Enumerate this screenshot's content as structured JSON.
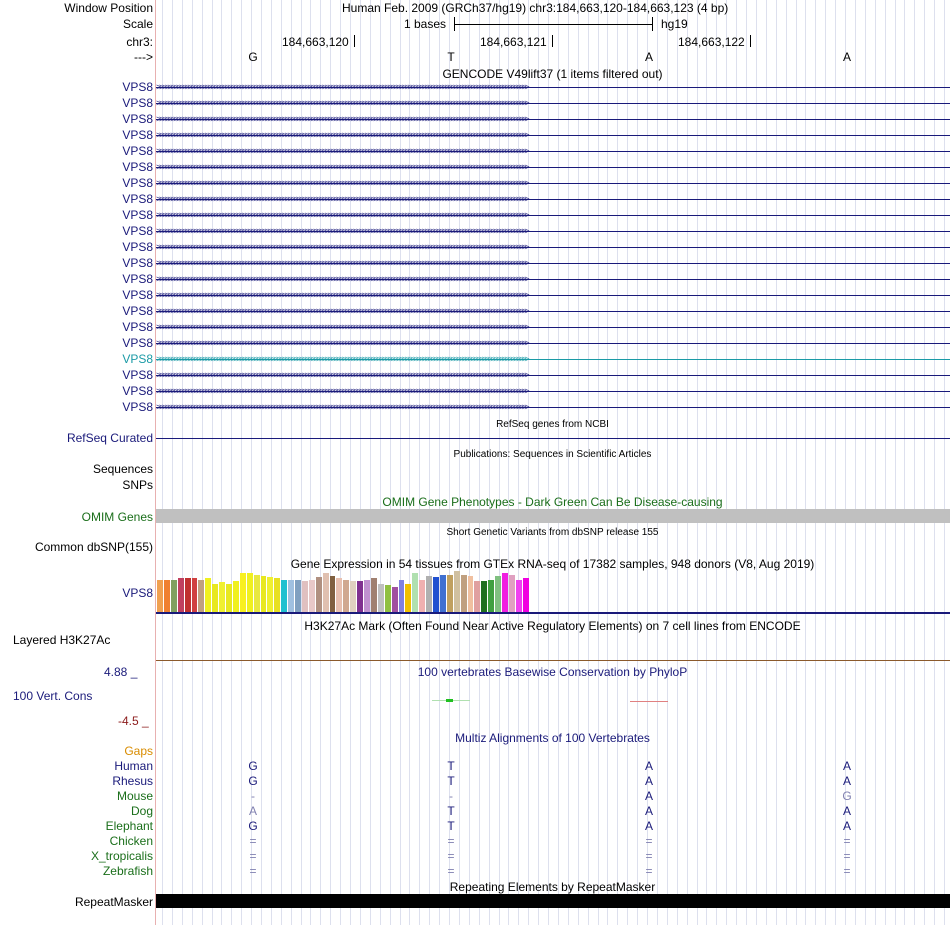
{
  "header": {
    "window_position_label": "Window Position",
    "assembly_text": "Human Feb. 2009 (GRCh37/hg19)   chr3:184,663,120-184,663,123 (4 bp)",
    "scale_label": "Scale",
    "scale_text": "1 bases",
    "scale_assembly": "hg19",
    "chrom_label": "chr3:",
    "coords": [
      "184,663,120",
      "184,663,121",
      "184,663,122"
    ],
    "strand_label": "--->",
    "bases": [
      "G",
      "T",
      "A",
      "A"
    ]
  },
  "gencode": {
    "title": "GENCODE V49lift37 (1 items filtered out)",
    "gene_name": "VPS8",
    "row_count": 21,
    "highlight_row": 17,
    "color": "#1a1a7a",
    "highlight_color": "#1a9aa6"
  },
  "refseq": {
    "title": "RefSeq genes from NCBI",
    "label": "RefSeq Curated"
  },
  "publications": {
    "title": "Publications: Sequences in Scientific Articles",
    "label": "Sequences"
  },
  "snps": {
    "label": "SNPs"
  },
  "omim": {
    "title": "OMIM Gene Phenotypes - Dark Green Can Be Disease-causing",
    "label": "OMIM Genes"
  },
  "dbsnp": {
    "title": "Short Genetic Variants from dbSNP release 155",
    "label": "Common dbSNP(155)"
  },
  "gtex": {
    "title": "Gene Expression in 54 tissues from GTEx RNA-seq of 17382 samples, 948 donors (V8, Aug 2019)",
    "label": "VPS8",
    "values": [
      0.63,
      0.63,
      0.63,
      0.67,
      0.67,
      0.67,
      0.63,
      0.67,
      0.57,
      0.59,
      0.57,
      0.61,
      0.77,
      0.77,
      0.73,
      0.71,
      0.69,
      0.67,
      0.63,
      0.63,
      0.63,
      0.61,
      0.63,
      0.69,
      0.77,
      0.71,
      0.67,
      0.63,
      0.61,
      0.61,
      0.63,
      0.67,
      0.57,
      0.53,
      0.49,
      0.63,
      0.55,
      0.77,
      0.63,
      0.71,
      0.69,
      0.73,
      0.73,
      0.81,
      0.73,
      0.71,
      0.61,
      0.61,
      0.63,
      0.71,
      0.77,
      0.73,
      0.63,
      0.67
    ],
    "colors": [
      "#f0a050",
      "#f08030",
      "#80a060",
      "#c04060",
      "#c03030",
      "#d04040",
      "#c0a080",
      "#f0f020",
      "#e8e820",
      "#f0f030",
      "#e8e820",
      "#f0f020",
      "#f8f020",
      "#f0f020",
      "#e8e840",
      "#e8e820",
      "#f0f030",
      "#e8e020",
      "#20c0d0",
      "#a0c0e0",
      "#80a0c0",
      "#e0c0c0",
      "#e8c8c8",
      "#b09080",
      "#e0c0b0",
      "#806040",
      "#e8c0b0",
      "#d0a890",
      "#e0d0c0",
      "#803090",
      "#c090d0",
      "#a08070",
      "#c0c0c0",
      "#90c040",
      "#a050a0",
      "#8080e0",
      "#f0c000",
      "#b0e0b0",
      "#f0b0b0",
      "#b0b0b0",
      "#2050d0",
      "#4070d0",
      "#c0a060",
      "#d0c0a0",
      "#c0a080",
      "#f0c0a0",
      "#e0a0a0",
      "#207020",
      "#40a040",
      "#80c080",
      "#f020e0",
      "#e0a0c0",
      "#f040f0",
      "#f000e0"
    ]
  },
  "h3k27": {
    "title": "H3K27Ac Mark (Often Found Near Active Regulatory Elements) on 7 cell lines from ENCODE",
    "label": "Layered H3K27Ac"
  },
  "phylop": {
    "title": "100 vertebrates Basewise Conservation by PhyloP",
    "label": "100 Vert. Cons",
    "max": "4.88 _",
    "min": "-4.5 _"
  },
  "multiz": {
    "title": "Multiz Alignments of 100 Vertebrates",
    "gaps_label": "Gaps",
    "species": [
      {
        "name": "Human",
        "bases": [
          "G",
          "T",
          "A",
          "A"
        ],
        "style": "navy"
      },
      {
        "name": "Rhesus",
        "bases": [
          "G",
          "T",
          "A",
          "A"
        ],
        "style": "navy"
      },
      {
        "name": "Mouse",
        "bases": [
          "-",
          "-",
          "A",
          "G"
        ],
        "style": "green"
      },
      {
        "name": "Dog",
        "bases": [
          "A",
          "T",
          "A",
          "A"
        ],
        "style": "green"
      },
      {
        "name": "Elephant",
        "bases": [
          "G",
          "T",
          "A",
          "A"
        ],
        "style": "green"
      },
      {
        "name": "Chicken",
        "bases": [
          "=",
          "=",
          "=",
          "="
        ],
        "style": "green"
      },
      {
        "name": "X_tropicalis",
        "bases": [
          "=",
          "=",
          "=",
          "="
        ],
        "style": "green"
      },
      {
        "name": "Zebrafish",
        "bases": [
          "=",
          "=",
          "=",
          "="
        ],
        "style": "green"
      }
    ]
  },
  "repeatmasker": {
    "title": "Repeating Elements by RepeatMasker",
    "label": "RepeatMasker"
  }
}
